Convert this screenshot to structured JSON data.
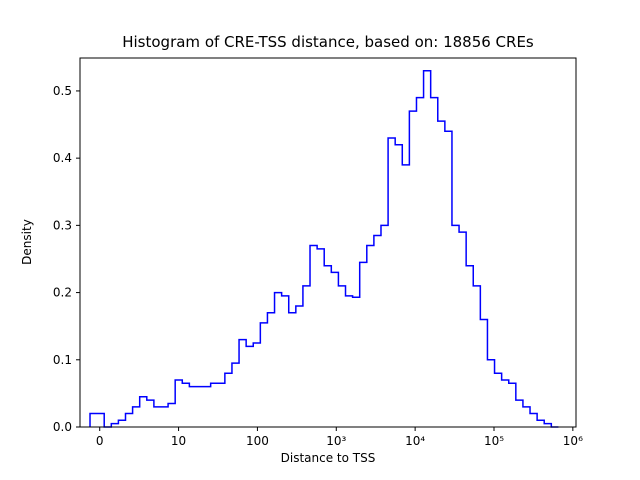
{
  "figure": {
    "background": "#ffffff"
  },
  "chart_data": {
    "type": "histogram_step",
    "title": "Histogram of CRE-TSS distance, based on: 18856 CREs",
    "xlabel": "Distance to TSS",
    "ylabel": "Density",
    "n_cres": 18856,
    "line_color": "#0000ff",
    "axis_color": "#000000",
    "x_scale": "symlog: t = x/10 for 0 <= x <= 10, t = 1 + log10(x/10) for x > 10",
    "x_ticks": {
      "t": [
        0,
        1,
        2,
        3,
        4,
        5,
        6
      ],
      "values": [
        0,
        10,
        100,
        1000,
        10000,
        100000,
        1000000
      ],
      "labels": [
        "0",
        "10",
        "100",
        "10³",
        "10⁴",
        "10⁵",
        "10⁶"
      ]
    },
    "y_ticks": {
      "values": [
        0,
        0.1,
        0.2,
        0.3,
        0.4,
        0.5
      ],
      "labels": [
        "0.0",
        "0.1",
        "0.2",
        "0.3",
        "0.4",
        "0.5"
      ]
    },
    "xlim_t": [
      -0.25,
      6.04
    ],
    "ylim": [
      0,
      0.549
    ],
    "legend": "none",
    "grid": false,
    "bins": {
      "t_first_edge": -0.123,
      "t_bin_width": 0.09,
      "densities": [
        0.02,
        0.02,
        0,
        0.005,
        0.01,
        0.02,
        0.03,
        0.045,
        0.04,
        0.03,
        0.03,
        0.035,
        0.07,
        0.065,
        0.06,
        0.06,
        0.06,
        0.065,
        0.065,
        0.08,
        0.095,
        0.13,
        0.12,
        0.125,
        0.155,
        0.17,
        0.2,
        0.195,
        0.17,
        0.18,
        0.21,
        0.27,
        0.265,
        0.24,
        0.23,
        0.21,
        0.195,
        0.193,
        0.245,
        0.27,
        0.285,
        0.3,
        0.43,
        0.42,
        0.39,
        0.47,
        0.49,
        0.53,
        0.49,
        0.455,
        0.44,
        0.3,
        0.29,
        0.24,
        0.21,
        0.16,
        0.1,
        0.08,
        0.07,
        0.065,
        0.04,
        0.03,
        0.02,
        0.01,
        0.005,
        0
      ]
    }
  }
}
